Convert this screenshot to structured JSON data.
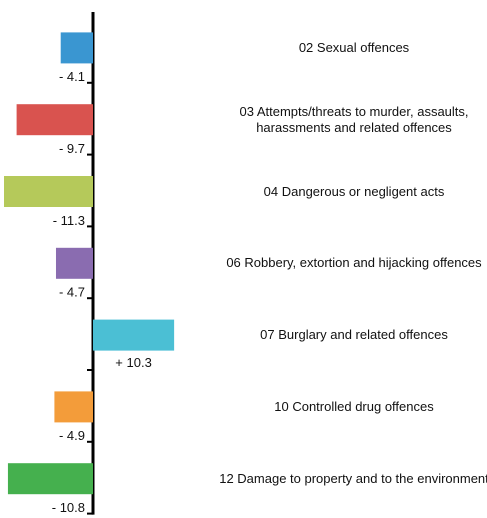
{
  "chart_data": {
    "type": "hbar",
    "categories": [
      "02 Sexual offences",
      "03 Attempts/threats to murder, assaults, harassments and related offences",
      "04 Dangerous or negligent acts",
      "06 Robbery, extortion and hijacking offences",
      "07 Burglary and related offences",
      "10 Controlled drug offences",
      "12 Damage to property and to the environment"
    ],
    "values": [
      -4.1,
      -9.7,
      -11.3,
      -4.7,
      10.3,
      -4.9,
      -10.8
    ],
    "value_labels": [
      "- 4.1",
      "- 9.7",
      "- 11.3",
      "- 4.7",
      "+ 10.3",
      "- 4.9",
      "- 10.8"
    ],
    "colors": [
      "#3a96d1",
      "#d9534f",
      "#b5c95a",
      "#8a6cb0",
      "#4bbfd4",
      "#f39c3a",
      "#45b04e"
    ]
  }
}
